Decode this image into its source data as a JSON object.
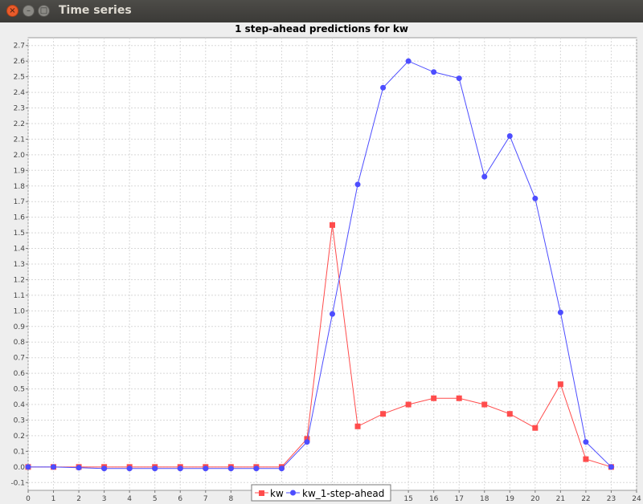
{
  "window": {
    "title": "Time series",
    "close_glyph": "×",
    "minimize_glyph": "–",
    "maximize_glyph": "□"
  },
  "colors": {
    "kw": "#ff4c4c",
    "kw_ahead": "#4d4dff",
    "grid": "#d8d8d8",
    "plot_bg": "#ffffff"
  },
  "chart_data": {
    "type": "line",
    "title": "1 step-ahead predictions for kw",
    "xlabel": "",
    "ylabel": "",
    "xlim": [
      0,
      24
    ],
    "ylim": [
      -0.15,
      2.75
    ],
    "x_ticks": [
      0,
      1,
      2,
      3,
      4,
      5,
      6,
      7,
      8,
      9,
      10,
      11,
      12,
      13,
      14,
      15,
      16,
      17,
      18,
      19,
      20,
      21,
      22,
      23,
      24
    ],
    "y_ticks": [
      "-0.1",
      "0.0",
      "0.1",
      "0.2",
      "0.3",
      "0.4",
      "0.5",
      "0.6",
      "0.7",
      "0.8",
      "0.9",
      "1.0",
      "1.1",
      "1.2",
      "1.3",
      "1.4",
      "1.5",
      "1.6",
      "1.7",
      "1.8",
      "1.9",
      "2.0",
      "2.1",
      "2.2",
      "2.3",
      "2.4",
      "2.5",
      "2.6",
      "2.7"
    ],
    "grid": true,
    "legend_position": "bottom-center",
    "series": [
      {
        "name": "kw",
        "marker": "square",
        "color": "#ff4c4c",
        "x": [
          0,
          1,
          2,
          3,
          4,
          5,
          6,
          7,
          8,
          9,
          10,
          11,
          12,
          13,
          14,
          15,
          16,
          17,
          18,
          19,
          20,
          21,
          22,
          23
        ],
        "values": [
          0.0,
          0.0,
          0.0,
          0.0,
          0.0,
          0.0,
          0.0,
          0.0,
          0.0,
          0.0,
          0.0,
          0.18,
          1.55,
          0.26,
          0.34,
          0.4,
          0.44,
          0.44,
          0.4,
          0.34,
          0.25,
          0.53,
          0.05,
          0.0
        ]
      },
      {
        "name": "kw_1-step-ahead",
        "marker": "circle",
        "color": "#4d4dff",
        "x": [
          0,
          1,
          2,
          3,
          4,
          5,
          6,
          7,
          8,
          9,
          10,
          11,
          12,
          13,
          14,
          15,
          16,
          17,
          18,
          19,
          20,
          21,
          22,
          23
        ],
        "values": [
          0.0,
          0.0,
          -0.005,
          -0.01,
          -0.01,
          -0.01,
          -0.01,
          -0.01,
          -0.01,
          -0.01,
          -0.01,
          0.16,
          0.98,
          1.81,
          2.43,
          2.6,
          2.53,
          2.49,
          1.86,
          2.12,
          1.72,
          0.99,
          0.16,
          0.0
        ]
      }
    ]
  }
}
